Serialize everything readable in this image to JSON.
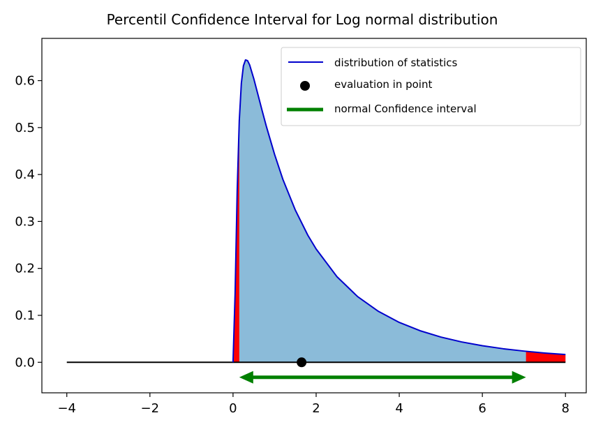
{
  "chart_data": {
    "type": "area",
    "title": "Percentil Confidence Interval for Log normal distribution",
    "xlabel": "",
    "ylabel": "",
    "xlim": [
      -4.6,
      8.5
    ],
    "ylim": [
      -0.065,
      0.69
    ],
    "x_ticks": [
      {
        "value": -4,
        "label": "−4"
      },
      {
        "value": -2,
        "label": "−2"
      },
      {
        "value": 0,
        "label": "0"
      },
      {
        "value": 2,
        "label": "2"
      },
      {
        "value": 4,
        "label": "4"
      },
      {
        "value": 6,
        "label": "6"
      },
      {
        "value": 8,
        "label": "8"
      }
    ],
    "y_ticks": [
      {
        "value": 0.0,
        "label": "0.0"
      },
      {
        "value": 0.1,
        "label": "0.1"
      },
      {
        "value": 0.2,
        "label": "0.2"
      },
      {
        "value": 0.3,
        "label": "0.3"
      },
      {
        "value": 0.4,
        "label": "0.4"
      },
      {
        "value": 0.5,
        "label": "0.5"
      },
      {
        "value": 0.6,
        "label": "0.6"
      }
    ],
    "grid": false,
    "legend_position": "top-right",
    "series": [
      {
        "name": "distribution of statistics",
        "kind": "line",
        "color": "#0000cc",
        "x": [
          -4,
          0,
          0.05,
          0.1,
          0.15,
          0.2,
          0.25,
          0.3,
          0.35,
          0.4,
          0.5,
          0.6,
          0.7,
          0.8,
          1.0,
          1.2,
          1.5,
          1.8,
          2.0,
          2.5,
          3.0,
          3.5,
          4.0,
          4.5,
          5.0,
          5.5,
          6.0,
          6.5,
          7.0,
          7.5,
          8.0
        ],
        "y": [
          0.0,
          0.0,
          0.147,
          0.3655,
          0.5142,
          0.5941,
          0.6315,
          0.6441,
          0.6426,
          0.6334,
          0.6039,
          0.5701,
          0.5361,
          0.5032,
          0.4428,
          0.3896,
          0.3241,
          0.2707,
          0.2413,
          0.1825,
          0.1398,
          0.1085,
          0.085,
          0.0673,
          0.0538,
          0.0434,
          0.0353,
          0.0289,
          0.0239,
          0.0198,
          0.0165
        ]
      },
      {
        "name": "evaluation in point",
        "kind": "point",
        "color": "#000000",
        "x": [
          1.65
        ],
        "y": [
          0.0
        ]
      },
      {
        "name": "normal Confidence interval",
        "kind": "interval",
        "color": "#008000",
        "x": [
          0.15,
          7.05
        ],
        "y": [
          -0.032,
          -0.032
        ]
      }
    ],
    "fill": {
      "color": "#8bbbd9",
      "under": "distribution of statistics",
      "x_range": [
        0,
        8
      ]
    },
    "tail_regions": [
      {
        "color": "#ff0000",
        "x": [
          0.02,
          0.15
        ]
      },
      {
        "color": "#ff0000",
        "x": [
          7.05,
          8.0
        ]
      }
    ],
    "baseline": {
      "color": "#000000",
      "x": [
        -4,
        8
      ],
      "y": 0.0
    }
  }
}
